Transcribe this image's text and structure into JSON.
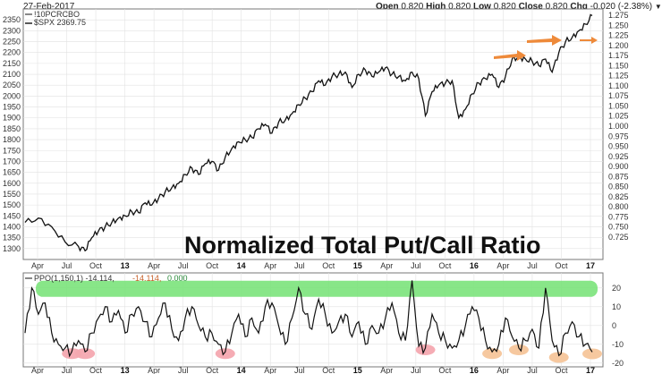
{
  "header": {
    "date": "27-Feb-2017",
    "open_label": "Open",
    "open": "0.820",
    "high_label": "High",
    "high": "0.820",
    "low_label": "Low",
    "low": "0.820",
    "close_label": "Close",
    "close": "0.820",
    "chg_label": "Chg",
    "chg": "-0.020 (-2.38%)",
    "dropdown_icon": "caret-down-icon"
  },
  "legend": {
    "symbol": "!10PCRCBO",
    "series2": "$SPX 2369.75"
  },
  "ppo_legend": {
    "label": "PPO(1,150,1) -14.114,",
    "value2": "-14.114,",
    "value3": "0.000"
  },
  "chart_data": [
    {
      "type": "line",
      "title": "Normalized Total Put/Call Ratio",
      "series": [
        {
          "name": "$SPX",
          "color": "#111111",
          "points": [
            [
              0,
              1420
            ],
            [
              2,
              1440
            ],
            [
              4,
              1400
            ],
            [
              6,
              1330
            ],
            [
              8,
              1310
            ],
            [
              9,
              1290
            ],
            [
              10,
              1350
            ],
            [
              11,
              1380
            ],
            [
              12,
              1400
            ],
            [
              13,
              1420
            ],
            [
              14,
              1440
            ],
            [
              15,
              1450
            ],
            [
              16,
              1470
            ],
            [
              17,
              1465
            ],
            [
              18,
              1510
            ],
            [
              19,
              1500
            ],
            [
              20,
              1530
            ],
            [
              21,
              1560
            ],
            [
              22,
              1580
            ],
            [
              23,
              1600
            ],
            [
              24,
              1640
            ],
            [
              25,
              1670
            ],
            [
              26,
              1640
            ],
            [
              27,
              1690
            ],
            [
              28,
              1700
            ],
            [
              29,
              1660
            ],
            [
              30,
              1720
            ],
            [
              31,
              1760
            ],
            [
              32,
              1790
            ],
            [
              33,
              1800
            ],
            [
              34,
              1810
            ],
            [
              35,
              1850
            ],
            [
              36,
              1870
            ],
            [
              37,
              1830
            ],
            [
              38,
              1880
            ],
            [
              39,
              1890
            ],
            [
              40,
              1920
            ],
            [
              41,
              1960
            ],
            [
              42,
              1990
            ],
            [
              43,
              2020
            ],
            [
              44,
              2070
            ],
            [
              45,
              2050
            ],
            [
              46,
              2090
            ],
            [
              47,
              2100
            ],
            [
              48,
              2110
            ],
            [
              49,
              2040
            ],
            [
              50,
              2100
            ],
            [
              51,
              2120
            ],
            [
              52,
              2090
            ],
            [
              53,
              2110
            ],
            [
              54,
              2130
            ],
            [
              55,
              2100
            ],
            [
              56,
              2090
            ],
            [
              57,
              2070
            ],
            [
              58,
              2110
            ],
            [
              59,
              2080
            ],
            [
              60,
              1910
            ],
            [
              61,
              2020
            ],
            [
              62,
              2050
            ],
            [
              63,
              2060
            ],
            [
              64,
              2070
            ],
            [
              65,
              1900
            ],
            [
              66,
              1940
            ],
            [
              67,
              2010
            ],
            [
              68,
              2060
            ],
            [
              69,
              2080
            ],
            [
              70,
              2100
            ],
            [
              71,
              2040
            ],
            [
              72,
              2090
            ],
            [
              73,
              2170
            ],
            [
              74,
              2180
            ],
            [
              75,
              2170
            ],
            [
              76,
              2160
            ],
            [
              77,
              2140
            ],
            [
              78,
              2170
            ],
            [
              79,
              2110
            ],
            [
              80,
              2200
            ],
            [
              81,
              2250
            ],
            [
              82,
              2270
            ],
            [
              83,
              2300
            ],
            [
              84,
              2330
            ],
            [
              85,
              2369.75
            ]
          ],
          "ylim": [
            1250,
            2400
          ],
          "yticks": [
            1300,
            1350,
            1400,
            1450,
            1500,
            1550,
            1600,
            1650,
            1700,
            1750,
            1800,
            1850,
            1900,
            1950,
            2000,
            2050,
            2100,
            2150,
            2200,
            2250,
            2300,
            2350
          ]
        }
      ],
      "right_axis": {
        "label_series": "!10PCRCBO",
        "yticks": [
          "1.275",
          "1.250",
          "1.225",
          "1.200",
          "1.175",
          "1.150",
          "1.125",
          "1.100",
          "1.075",
          "1.050",
          "1.025",
          "1.000",
          "0.975",
          "0.950",
          "0.925",
          "0.900",
          "0.875",
          "0.850",
          "0.825",
          "0.800",
          "0.775",
          "0.750",
          "0.725"
        ]
      },
      "xaxis_labels": [
        "Apr",
        "Jul",
        "Oct",
        "13",
        "Apr",
        "Jul",
        "Oct",
        "14",
        "Apr",
        "Jul",
        "Oct",
        "15",
        "Apr",
        "Jul",
        "Oct",
        "16",
        "Apr",
        "Jul",
        "Oct",
        "17"
      ],
      "annotations": [
        "orange-arrow",
        "orange-arrow",
        "orange-arrow"
      ]
    },
    {
      "type": "line",
      "title": "PPO(1,150,1)",
      "series": [
        {
          "name": "PPO(1,150,1)",
          "color": "#111111",
          "points": [
            [
              0,
              -4
            ],
            [
              1,
              20
            ],
            [
              2,
              6
            ],
            [
              3,
              12
            ],
            [
              4,
              -4
            ],
            [
              5,
              -10
            ],
            [
              6,
              -12
            ],
            [
              7,
              -14
            ],
            [
              8,
              -8
            ],
            [
              9,
              -14
            ],
            [
              10,
              -4
            ],
            [
              11,
              4
            ],
            [
              12,
              10
            ],
            [
              13,
              2
            ],
            [
              14,
              8
            ],
            [
              15,
              -4
            ],
            [
              16,
              6
            ],
            [
              17,
              10
            ],
            [
              18,
              2
            ],
            [
              19,
              -6
            ],
            [
              20,
              4
            ],
            [
              21,
              12
            ],
            [
              22,
              -2
            ],
            [
              23,
              -8
            ],
            [
              24,
              4
            ],
            [
              25,
              10
            ],
            [
              26,
              0
            ],
            [
              27,
              -6
            ],
            [
              28,
              -4
            ],
            [
              29,
              -10
            ],
            [
              30,
              -14
            ],
            [
              31,
              -4
            ],
            [
              32,
              6
            ],
            [
              33,
              -6
            ],
            [
              34,
              4
            ],
            [
              35,
              -4
            ],
            [
              36,
              10
            ],
            [
              37,
              12
            ],
            [
              38,
              0
            ],
            [
              39,
              -10
            ],
            [
              40,
              4
            ],
            [
              41,
              20
            ],
            [
              42,
              6
            ],
            [
              43,
              -2
            ],
            [
              44,
              14
            ],
            [
              45,
              6
            ],
            [
              46,
              -4
            ],
            [
              47,
              2
            ],
            [
              48,
              6
            ],
            [
              49,
              -6
            ],
            [
              50,
              2
            ],
            [
              51,
              -10
            ],
            [
              52,
              0
            ],
            [
              53,
              -4
            ],
            [
              54,
              4
            ],
            [
              55,
              12
            ],
            [
              56,
              -4
            ],
            [
              57,
              -8
            ],
            [
              58,
              24
            ],
            [
              59,
              -11
            ],
            [
              60,
              -12
            ],
            [
              61,
              6
            ],
            [
              62,
              -4
            ],
            [
              63,
              -8
            ],
            [
              64,
              -12
            ],
            [
              65,
              -8
            ],
            [
              66,
              0
            ],
            [
              67,
              10
            ],
            [
              68,
              4
            ],
            [
              69,
              -8
            ],
            [
              70,
              -14
            ],
            [
              71,
              -10
            ],
            [
              72,
              4
            ],
            [
              73,
              -6
            ],
            [
              74,
              -12
            ],
            [
              75,
              -8
            ],
            [
              76,
              -2
            ],
            [
              77,
              -12
            ],
            [
              78,
              20
            ],
            [
              79,
              -8
            ],
            [
              80,
              -16
            ],
            [
              81,
              -4
            ],
            [
              82,
              2
            ],
            [
              83,
              -6
            ],
            [
              84,
              -10
            ],
            [
              85,
              -14.114
            ]
          ],
          "ylim": [
            -22,
            28
          ],
          "yticks": [
            20,
            10,
            0,
            -10,
            -20
          ]
        }
      ],
      "highlight_band_value": 20,
      "highlight_band_color": "#7be37b",
      "low_marker_color": "#f4a8b0",
      "low_marker_color_alt": "#f6c59a",
      "xaxis_labels": [
        "Apr",
        "Jul",
        "Oct",
        "13",
        "Apr",
        "Jul",
        "Oct",
        "14",
        "Apr",
        "Jul",
        "Oct",
        "15",
        "Apr",
        "Jul",
        "Oct",
        "16",
        "Apr",
        "Jul",
        "Oct",
        "17"
      ]
    }
  ]
}
